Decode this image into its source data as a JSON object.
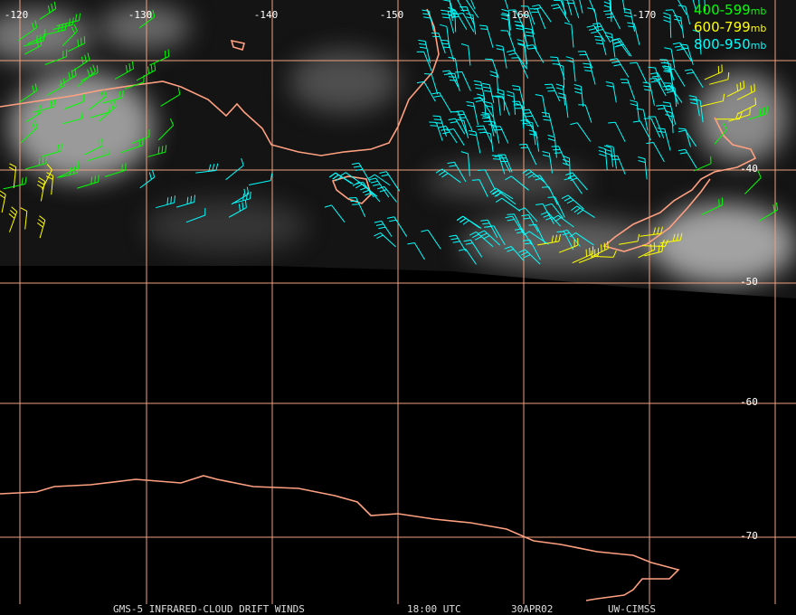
{
  "map": {
    "longitude_labels": [
      "-120",
      "-130",
      "-140",
      "-150",
      "-160",
      "-170"
    ],
    "latitude_labels": [
      "-40",
      "-50",
      "-60",
      "-70"
    ],
    "legend": [
      {
        "range": "400-599",
        "unit": "mb",
        "color": "#00ff00"
      },
      {
        "range": "600-799",
        "unit": "mb",
        "color": "#ffff00"
      },
      {
        "range": "800-950",
        "unit": "mb",
        "color": "#00ffff"
      }
    ],
    "footer": [
      "GMS-5 INFRARED-CLOUD DRIFT WINDS",
      "18:00 UTC",
      "30APR02",
      "UW-CIMSS"
    ]
  }
}
